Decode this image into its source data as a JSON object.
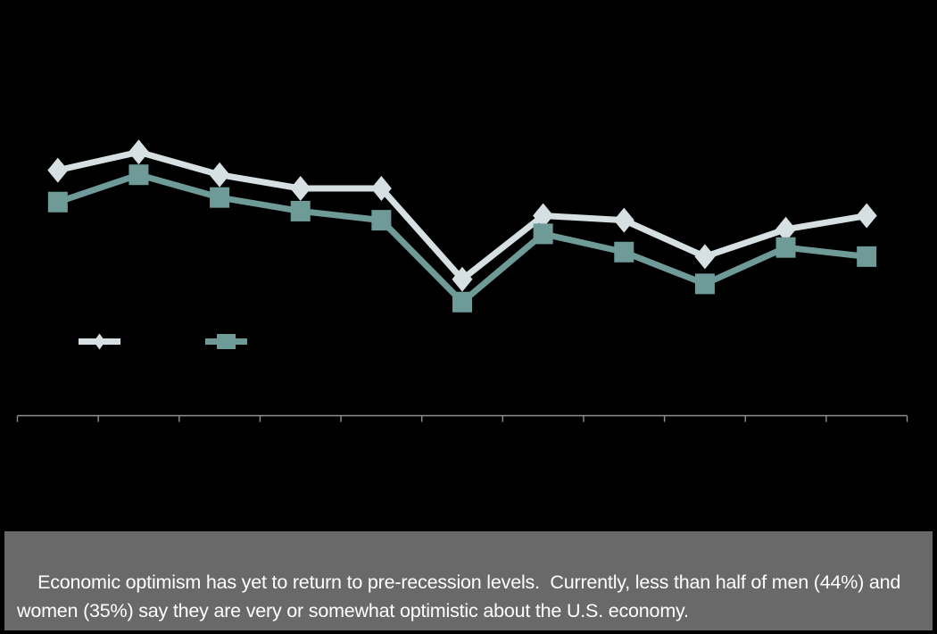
{
  "page": {
    "background_color": "#000000"
  },
  "chart_data": {
    "type": "line",
    "title": "",
    "xlabel": "",
    "ylabel": "",
    "x": [
      1,
      2,
      3,
      4,
      5,
      6,
      7,
      8,
      9,
      10,
      11
    ],
    "x_tick_count": 12,
    "x_tick_labels_visible": false,
    "y_axis_visible": false,
    "ylim": [
      0,
      100
    ],
    "grid": false,
    "axis_color": "#8f8f8f",
    "legend_position": "inside-left-below-lines",
    "legend_labels_visible": false,
    "series": [
      {
        "name": "Men",
        "marker": "diamond",
        "color": "#d6e0e2",
        "values": [
          54,
          58,
          53,
          50,
          50,
          30,
          44,
          43,
          35,
          41,
          44
        ]
      },
      {
        "name": "Women",
        "marker": "square",
        "color": "#6e9a98",
        "values": [
          47,
          53,
          48,
          45,
          43,
          25,
          40,
          36,
          29,
          37,
          35
        ]
      }
    ]
  },
  "caption": {
    "text": "Economic optimism has yet to return to pre-recession levels.  Currently, less than half of men (44%) and women (35%) say they are very or somewhat optimistic about the U.S. economy.",
    "background": "#696969",
    "text_color": "#ffffff",
    "men_current_value": "44%",
    "women_current_value": "35%"
  }
}
